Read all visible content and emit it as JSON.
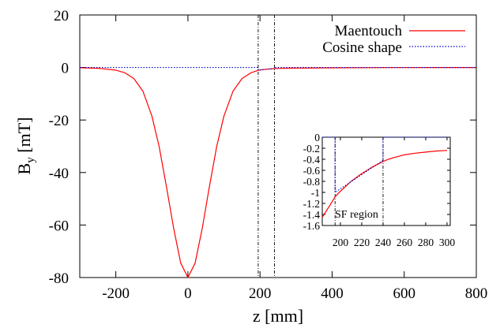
{
  "chart_data": [
    {
      "type": "line",
      "xlabel": "z [mm]",
      "ylabel_main": "B",
      "ylabel_sub": "y",
      "ylabel_tail": " [mT]",
      "xlim": [
        -300,
        800
      ],
      "ylim": [
        -80,
        20
      ],
      "xticks": [
        -200,
        0,
        200,
        400,
        600,
        800
      ],
      "yticks": [
        -80,
        -60,
        -40,
        -20,
        0,
        20
      ],
      "grid": false,
      "legend_position": "top-right",
      "vlines": [
        195,
        240
      ],
      "series": [
        {
          "name": "Maentouch",
          "color": "#ff0000",
          "style": "solid",
          "x": [
            -300,
            -250,
            -200,
            -175,
            -150,
            -125,
            -100,
            -80,
            -60,
            -40,
            -20,
            0,
            20,
            40,
            60,
            80,
            100,
            125,
            150,
            175,
            195,
            200,
            220,
            240,
            260,
            280,
            300,
            400,
            500,
            600,
            700,
            800
          ],
          "y": [
            -0.1,
            -0.3,
            -1.0,
            -2.0,
            -4.2,
            -9.0,
            -18.5,
            -30.0,
            -45.0,
            -61.0,
            -74.5,
            -80.0,
            -74.5,
            -61.0,
            -45.0,
            -30.0,
            -18.5,
            -9.0,
            -4.2,
            -2.0,
            -1.08,
            -0.95,
            -0.62,
            -0.42,
            -0.33,
            -0.28,
            -0.25,
            -0.12,
            -0.05,
            -0.02,
            -0.01,
            0.0
          ]
        },
        {
          "name": "Cosine shape",
          "color": "#0000cc",
          "style": "dotted",
          "x": [
            -300,
            195,
            195,
            240,
            240,
            800
          ],
          "y": [
            0,
            0,
            -1.0,
            -0.42,
            0,
            0
          ]
        }
      ]
    },
    {
      "type": "line",
      "role": "inset",
      "annotation": "SF region",
      "xlim": [
        183,
        303
      ],
      "ylim": [
        -1.6,
        0
      ],
      "xticks": [
        200,
        220,
        240,
        260,
        280,
        300
      ],
      "yticks": [
        0,
        -0.2,
        -0.4,
        -0.6,
        -0.8,
        -1,
        -1.2,
        -1.4,
        -1.6
      ],
      "ytick_labels": [
        "0",
        "-0.2",
        "-0.4",
        "-0.6",
        "-0.8",
        "-1",
        "-1.2",
        "-1.4",
        "-1.6"
      ],
      "vlines": [
        195,
        240
      ],
      "series": [
        {
          "color": "#ff0000",
          "style": "solid",
          "x": [
            183,
            190,
            195,
            200,
            205,
            210,
            215,
            220,
            225,
            230,
            235,
            240,
            245,
            250,
            260,
            270,
            280,
            290,
            300
          ],
          "y": [
            -1.45,
            -1.24,
            -1.08,
            -0.98,
            -0.89,
            -0.8,
            -0.73,
            -0.66,
            -0.6,
            -0.54,
            -0.49,
            -0.44,
            -0.4,
            -0.37,
            -0.32,
            -0.29,
            -0.27,
            -0.25,
            -0.24
          ]
        },
        {
          "color": "#0000cc",
          "style": "dotted",
          "x": [
            183,
            195,
            195,
            240,
            240,
            303
          ],
          "y": [
            0,
            0,
            -1.0,
            -0.42,
            0,
            0
          ]
        }
      ]
    }
  ]
}
